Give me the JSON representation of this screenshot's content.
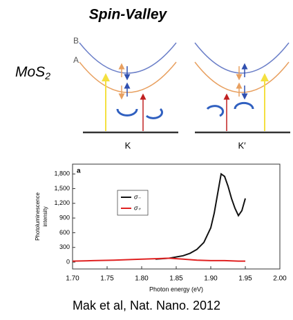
{
  "title": "Spin-Valley",
  "material": {
    "base": "MoS",
    "subscript": "2"
  },
  "diagram": {
    "band_upper": "B",
    "band_lower": "A",
    "valley_left": "K",
    "valley_right": "K′"
  },
  "chart_data": {
    "type": "line",
    "panel_label": "a",
    "x_label": "Photon energy (eV)",
    "y_label": [
      "Photoluminescence",
      "intensity"
    ],
    "xlim": [
      1.7,
      2.0
    ],
    "xticks": [
      {
        "value": 1.7,
        "label": "1.70"
      },
      1.75,
      {
        "value": 1.8,
        "label": "1.80"
      },
      1.85,
      {
        "value": 1.9,
        "label": "1.90"
      },
      1.95,
      {
        "value": 2.0,
        "label": "2.00"
      }
    ],
    "ylim": [
      -140,
      2000
    ],
    "yticks": [
      0,
      300,
      600,
      900,
      {
        "value": 1200,
        "label": "1,200"
      },
      {
        "value": 1500,
        "label": "1,500"
      },
      {
        "value": 1800,
        "label": "1,800"
      }
    ],
    "series": [
      {
        "name": "σ₋",
        "color": "#111111",
        "x": [
          1.82,
          1.84,
          1.86,
          1.87,
          1.88,
          1.89,
          1.9,
          1.905,
          1.91,
          1.915,
          1.92,
          1.925,
          1.93,
          1.935,
          1.94,
          1.945,
          1.95
        ],
        "values": [
          60,
          80,
          130,
          180,
          260,
          400,
          700,
          1000,
          1400,
          1800,
          1750,
          1550,
          1300,
          1100,
          950,
          1050,
          1300
        ]
      },
      {
        "name": "σ₊",
        "color": "#e02020",
        "x": [
          1.7,
          1.73,
          1.76,
          1.79,
          1.82,
          1.84,
          1.86,
          1.88,
          1.9,
          1.92,
          1.94,
          1.95
        ],
        "values": [
          20,
          30,
          40,
          55,
          70,
          80,
          60,
          40,
          30,
          30,
          20,
          20
        ]
      }
    ]
  },
  "citation": "Mak et al, Nat. Nano. 2012"
}
